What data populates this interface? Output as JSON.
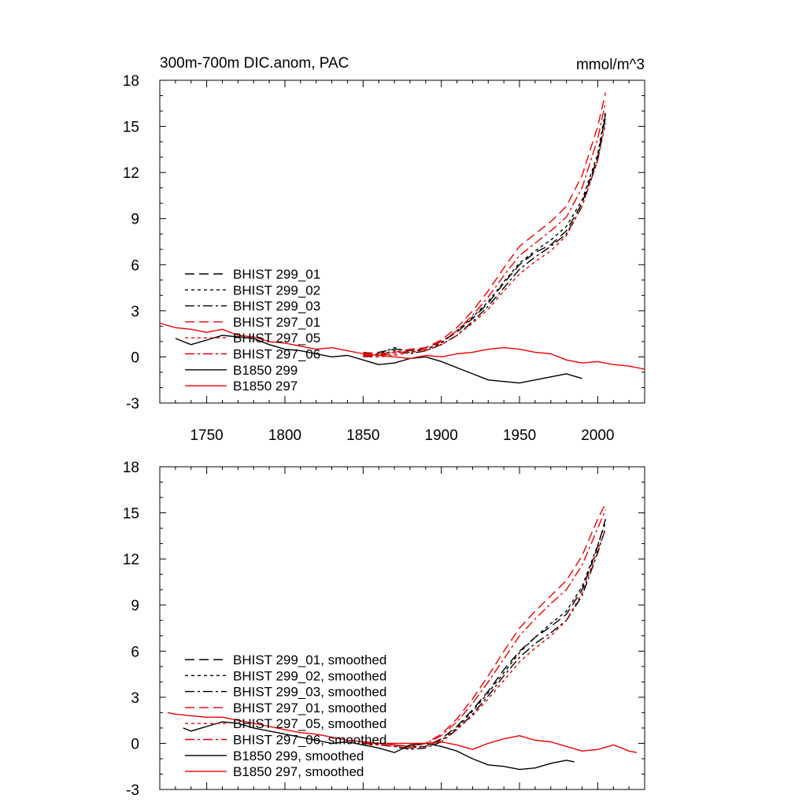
{
  "chart_data": [
    {
      "type": "line",
      "title": "300m-700m DIC.anom, PAC",
      "units": "mmol/m^3",
      "xlim": [
        1720,
        2030
      ],
      "ylim": [
        -3,
        18
      ],
      "yticks": [
        "-3",
        "0",
        "3",
        "6",
        "9",
        "12",
        "15",
        "18"
      ],
      "xticks": [
        "1750",
        "1800",
        "1850",
        "1900",
        "1950",
        "2000"
      ],
      "legend_position": "left",
      "series": [
        {
          "name": "BHIST 299_01",
          "color": "#000000",
          "dash": "12,6",
          "x": [
            1850,
            1860,
            1870,
            1880,
            1890,
            1900,
            1910,
            1920,
            1930,
            1940,
            1950,
            1960,
            1970,
            1980,
            1990,
            2000,
            2005
          ],
          "y": [
            0.2,
            0.3,
            0.5,
            0.4,
            0.6,
            1.0,
            1.6,
            2.5,
            3.5,
            4.8,
            6.0,
            6.8,
            7.3,
            8.2,
            10.0,
            13.0,
            15.8
          ]
        },
        {
          "name": "BHIST 299_02",
          "color": "#000000",
          "dash": "4,4",
          "x": [
            1850,
            1860,
            1870,
            1880,
            1890,
            1900,
            1910,
            1920,
            1930,
            1940,
            1950,
            1960,
            1970,
            1980,
            1990,
            2000,
            2005
          ],
          "y": [
            0.1,
            0.2,
            0.6,
            0.3,
            0.5,
            0.9,
            1.7,
            2.6,
            3.6,
            4.9,
            6.1,
            6.9,
            7.6,
            8.5,
            10.2,
            13.2,
            16.0
          ]
        },
        {
          "name": "BHIST 299_03",
          "color": "#000000",
          "dash": "12,4,3,4",
          "x": [
            1850,
            1860,
            1870,
            1880,
            1890,
            1900,
            1910,
            1920,
            1930,
            1940,
            1950,
            1960,
            1970,
            1980,
            1990,
            2000,
            2005
          ],
          "y": [
            0.0,
            0.1,
            0.4,
            0.2,
            0.4,
            0.8,
            1.4,
            2.3,
            3.3,
            4.5,
            5.7,
            6.5,
            7.2,
            8.0,
            9.8,
            12.8,
            15.6
          ]
        },
        {
          "name": "BHIST 297_01",
          "color": "#ee0000",
          "dash": "12,6",
          "x": [
            1850,
            1860,
            1870,
            1880,
            1890,
            1900,
            1910,
            1920,
            1930,
            1940,
            1950,
            1960,
            1970,
            1980,
            1990,
            2000,
            2005
          ],
          "y": [
            0.3,
            0.2,
            0.3,
            0.5,
            0.6,
            1.1,
            1.9,
            3.0,
            4.3,
            5.8,
            7.2,
            8.0,
            8.8,
            9.8,
            11.8,
            15.0,
            17.2
          ]
        },
        {
          "name": "BHIST 297_05",
          "color": "#ee0000",
          "dash": "4,4",
          "x": [
            1850,
            1860,
            1870,
            1880,
            1890,
            1900,
            1910,
            1920,
            1930,
            1940,
            1950,
            1960,
            1970,
            1980,
            1990,
            2000,
            2005
          ],
          "y": [
            0.0,
            0.0,
            0.1,
            0.3,
            0.4,
            0.8,
            1.4,
            2.2,
            3.1,
            4.3,
            5.4,
            6.2,
            6.9,
            7.9,
            9.8,
            12.8,
            15.2
          ]
        },
        {
          "name": "BHIST 297_06",
          "color": "#ee0000",
          "dash": "12,4,3,4",
          "x": [
            1850,
            1860,
            1870,
            1880,
            1890,
            1900,
            1910,
            1920,
            1930,
            1940,
            1950,
            1960,
            1970,
            1980,
            1990,
            2000,
            2005
          ],
          "y": [
            0.1,
            0.1,
            0.2,
            0.4,
            0.5,
            1.0,
            1.7,
            2.7,
            3.9,
            5.3,
            6.6,
            7.4,
            8.2,
            9.1,
            11.0,
            14.2,
            16.6
          ]
        },
        {
          "name": "B1850 299",
          "color": "#000000",
          "dash": "",
          "x": [
            1730,
            1740,
            1750,
            1760,
            1770,
            1780,
            1790,
            1800,
            1810,
            1820,
            1830,
            1840,
            1850,
            1860,
            1870,
            1880,
            1890,
            1900,
            1910,
            1920,
            1930,
            1940,
            1950,
            1960,
            1970,
            1980,
            1990
          ],
          "y": [
            1.2,
            0.8,
            1.1,
            1.4,
            1.3,
            1.2,
            0.8,
            0.5,
            0.4,
            0.2,
            0.0,
            0.1,
            -0.2,
            -0.5,
            -0.4,
            -0.1,
            0.0,
            -0.3,
            -0.7,
            -1.1,
            -1.5,
            -1.6,
            -1.7,
            -1.5,
            -1.3,
            -1.1,
            -1.4
          ]
        },
        {
          "name": "B1850 297",
          "color": "#ee0000",
          "dash": "",
          "x": [
            1720,
            1730,
            1740,
            1750,
            1760,
            1770,
            1780,
            1790,
            1800,
            1810,
            1820,
            1830,
            1840,
            1850,
            1860,
            1870,
            1880,
            1890,
            1900,
            1910,
            1920,
            1930,
            1940,
            1950,
            1960,
            1970,
            1980,
            1990,
            2000,
            2010,
            2020,
            2030
          ],
          "y": [
            2.2,
            1.9,
            1.8,
            1.6,
            1.8,
            1.4,
            1.3,
            1.0,
            0.9,
            0.7,
            0.5,
            0.6,
            0.4,
            0.2,
            0.1,
            0.0,
            -0.1,
            0.1,
            0.0,
            0.2,
            0.3,
            0.5,
            0.6,
            0.5,
            0.3,
            0.2,
            -0.2,
            -0.4,
            -0.3,
            -0.5,
            -0.6,
            -0.8
          ]
        }
      ]
    },
    {
      "type": "line",
      "xlim": [
        1720,
        2030
      ],
      "ylim": [
        -3,
        18
      ],
      "yticks": [
        "-3",
        "0",
        "3",
        "6",
        "9",
        "12",
        "15",
        "18"
      ],
      "legend_position": "left",
      "series": [
        {
          "name": "BHIST 299_01, smoothed",
          "color": "#000000",
          "dash": "12,6",
          "x": [
            1850,
            1860,
            1870,
            1880,
            1890,
            1900,
            1910,
            1920,
            1930,
            1940,
            1950,
            1960,
            1970,
            1980,
            1990,
            2000,
            2005
          ],
          "y": [
            0.1,
            0.0,
            -0.1,
            -0.3,
            -0.2,
            0.3,
            1.1,
            2.2,
            3.4,
            4.8,
            6.0,
            6.9,
            7.6,
            8.4,
            10.0,
            12.8,
            14.6
          ]
        },
        {
          "name": "BHIST 299_02, smoothed",
          "color": "#000000",
          "dash": "4,4",
          "x": [
            1850,
            1860,
            1870,
            1880,
            1890,
            1900,
            1910,
            1920,
            1930,
            1940,
            1950,
            1960,
            1970,
            1980,
            1990,
            2000,
            2005
          ],
          "y": [
            0.0,
            0.0,
            -0.1,
            -0.2,
            -0.2,
            0.2,
            1.0,
            2.1,
            3.3,
            4.6,
            5.9,
            6.9,
            7.8,
            8.6,
            10.2,
            12.9,
            14.4
          ]
        },
        {
          "name": "BHIST 299_03, smoothed",
          "color": "#000000",
          "dash": "12,4,3,4",
          "x": [
            1850,
            1860,
            1870,
            1880,
            1890,
            1900,
            1910,
            1920,
            1930,
            1940,
            1950,
            1960,
            1970,
            1980,
            1990,
            2000,
            2005
          ],
          "y": [
            0.0,
            -0.1,
            -0.2,
            -0.4,
            -0.3,
            0.1,
            0.9,
            1.9,
            3.1,
            4.4,
            5.6,
            6.5,
            7.2,
            8.0,
            9.6,
            12.4,
            14.0
          ]
        },
        {
          "name": "BHIST 297_01, smoothed",
          "color": "#ee0000",
          "dash": "12,6",
          "x": [
            1850,
            1860,
            1870,
            1880,
            1890,
            1900,
            1910,
            1920,
            1930,
            1940,
            1950,
            1960,
            1970,
            1980,
            1990,
            2000,
            2005
          ],
          "y": [
            0.1,
            0.0,
            -0.1,
            -0.2,
            0.0,
            0.6,
            1.6,
            2.9,
            4.4,
            6.0,
            7.5,
            8.6,
            9.6,
            10.6,
            12.2,
            14.6,
            15.6
          ]
        },
        {
          "name": "BHIST 297_05, smoothed",
          "color": "#ee0000",
          "dash": "4,4",
          "x": [
            1850,
            1860,
            1870,
            1880,
            1890,
            1900,
            1910,
            1920,
            1930,
            1940,
            1950,
            1960,
            1970,
            1980,
            1990,
            2000,
            2005
          ],
          "y": [
            -0.1,
            -0.1,
            -0.2,
            -0.3,
            -0.2,
            0.2,
            0.9,
            1.8,
            2.9,
            4.1,
            5.3,
            6.2,
            7.0,
            8.0,
            9.8,
            12.6,
            13.9
          ]
        },
        {
          "name": "BHIST 297_06, smoothed",
          "color": "#ee0000",
          "dash": "12,4,3,4",
          "x": [
            1850,
            1860,
            1870,
            1880,
            1890,
            1900,
            1910,
            1920,
            1930,
            1940,
            1950,
            1960,
            1970,
            1980,
            1990,
            2000,
            2005
          ],
          "y": [
            0.0,
            0.0,
            -0.1,
            -0.2,
            0.0,
            0.5,
            1.4,
            2.6,
            4.0,
            5.5,
            7.0,
            8.1,
            9.1,
            10.0,
            11.6,
            14.0,
            15.2
          ]
        },
        {
          "name": "B1850 299, smoothed",
          "color": "#000000",
          "dash": "",
          "x": [
            1735,
            1740,
            1750,
            1760,
            1770,
            1780,
            1790,
            1800,
            1810,
            1820,
            1830,
            1840,
            1850,
            1860,
            1870,
            1880,
            1890,
            1900,
            1910,
            1920,
            1930,
            1940,
            1950,
            1960,
            1970,
            1980,
            1985
          ],
          "y": [
            1.0,
            0.8,
            1.1,
            1.4,
            1.3,
            1.0,
            0.8,
            0.6,
            0.4,
            0.2,
            0.0,
            0.1,
            -0.1,
            -0.3,
            -0.6,
            -0.1,
            0.0,
            -0.2,
            -0.5,
            -1.0,
            -1.4,
            -1.5,
            -1.7,
            -1.6,
            -1.3,
            -1.1,
            -1.2
          ]
        },
        {
          "name": "B1850 297, smoothed",
          "color": "#ee0000",
          "dash": "",
          "x": [
            1725,
            1730,
            1740,
            1750,
            1760,
            1770,
            1780,
            1790,
            1800,
            1810,
            1820,
            1830,
            1840,
            1850,
            1860,
            1870,
            1880,
            1890,
            1900,
            1910,
            1920,
            1930,
            1940,
            1950,
            1960,
            1970,
            1980,
            1990,
            2000,
            2010,
            2020,
            2025
          ],
          "y": [
            2.0,
            1.9,
            1.8,
            1.7,
            1.7,
            1.5,
            1.3,
            1.1,
            0.9,
            0.7,
            0.6,
            0.4,
            0.2,
            0.1,
            0.0,
            0.0,
            0.0,
            0.0,
            0.1,
            -0.1,
            -0.4,
            0.0,
            0.3,
            0.5,
            0.2,
            0.1,
            -0.2,
            -0.5,
            -0.4,
            -0.1,
            -0.5,
            -0.6
          ]
        }
      ]
    }
  ]
}
